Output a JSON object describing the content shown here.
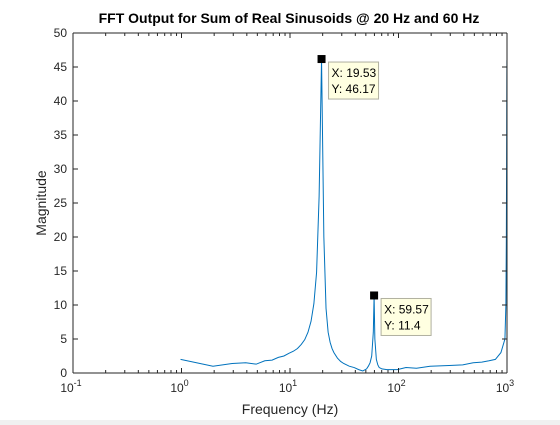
{
  "colors": {
    "line": "#0072bd",
    "axis": "#262626",
    "marker": "#000000",
    "tooltip_bg": "#ffffe1",
    "tooltip_border": "#b0b0a0"
  },
  "chart_data": {
    "type": "line",
    "title": "FFT Output for Sum of Real Sinusoids @ 20 Hz and 60 Hz",
    "xlabel": "Frequency (Hz)",
    "ylabel": "Magnitude",
    "xscale": "log",
    "xlim": [
      0.1,
      1000
    ],
    "ylim": [
      0,
      50
    ],
    "grid": false,
    "legend": "none",
    "x_ticks": [
      {
        "value": 0.1,
        "base": "10",
        "exp": "-1"
      },
      {
        "value": 1,
        "base": "10",
        "exp": "0"
      },
      {
        "value": 10,
        "base": "10",
        "exp": "1"
      },
      {
        "value": 100,
        "base": "10",
        "exp": "2"
      },
      {
        "value": 1000,
        "base": "10",
        "exp": "3"
      }
    ],
    "y_ticks": [
      "0",
      "5",
      "10",
      "15",
      "20",
      "25",
      "30",
      "35",
      "40",
      "45",
      "50"
    ],
    "series": [
      {
        "x": [
          0.98,
          1.95,
          2.93,
          3.91,
          4.88,
          5.86,
          6.84,
          7.81,
          8.79,
          9.77,
          10.74,
          11.72,
          12.7,
          13.67,
          14.65,
          15.63,
          16.6,
          17.58,
          18.55,
          19.53,
          20.51,
          21.48,
          22.46,
          23.44,
          24.41,
          25.39,
          27.34,
          29.3,
          31.25,
          35.16,
          39.06,
          42.97,
          46.88,
          50.78,
          52.73,
          54.69,
          56.64,
          58.59,
          59.57,
          60.55,
          62.5,
          64.45,
          66.41,
          70.31,
          78.13,
          97.66,
          117.19,
          146.48,
          195.31,
          292.97,
          390.63,
          488.28,
          585.94,
          683.59,
          781.25,
          878.91,
          957.03,
          976.56,
          986.33,
          991.21,
          996.09,
          998.05,
          1000
        ],
        "y": [
          2.0,
          1.0,
          1.4,
          1.5,
          1.3,
          1.8,
          1.9,
          2.3,
          2.5,
          2.9,
          3.2,
          3.6,
          4.2,
          4.9,
          6.0,
          7.6,
          10.2,
          14.8,
          26.0,
          46.17,
          20.0,
          9.5,
          6.0,
          4.5,
          3.6,
          3.0,
          2.2,
          1.7,
          1.4,
          1.0,
          0.8,
          0.5,
          0.3,
          0.6,
          1.0,
          1.5,
          2.5,
          6.0,
          11.4,
          5.0,
          2.0,
          1.2,
          0.8,
          0.6,
          0.5,
          0.5,
          0.8,
          0.7,
          1.0,
          1.1,
          1.2,
          1.5,
          1.6,
          1.8,
          2.0,
          3.0,
          5.0,
          10.0,
          20.0,
          30.0,
          43.0,
          46.0,
          43.5
        ]
      }
    ],
    "datatips": [
      {
        "x": 19.53,
        "y": 46.17,
        "text_x": "X: 19.53",
        "text_y": "Y: 46.17"
      },
      {
        "x": 59.57,
        "y": 11.4,
        "text_x": "X: 59.57",
        "text_y": "Y: 11.4"
      }
    ]
  }
}
